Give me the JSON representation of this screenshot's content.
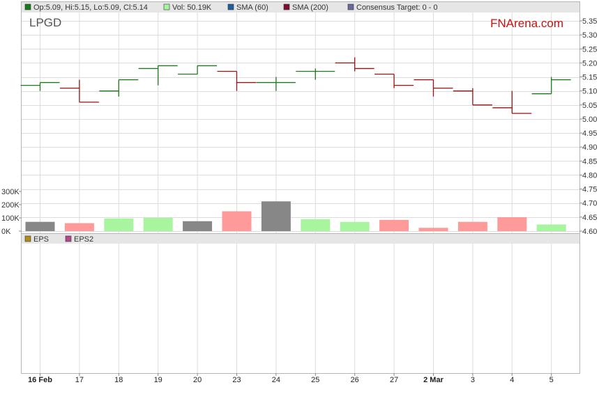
{
  "ticker": "LPGD",
  "brand": "FNArena.com",
  "legend": [
    {
      "text": "Op:5.09, Hi:5.15, Lo:5.09, Cl:5.14",
      "color": "#1a7a1a"
    },
    {
      "text": "Vol: 50.19K",
      "color": "#a8f5a0"
    },
    {
      "text": "SMA (60)",
      "color": "#1f5f9f"
    },
    {
      "text": "SMA (200)",
      "color": "#7a1030"
    },
    {
      "text": "Consensus Target: 0 - 0",
      "color": "#6a6a9a"
    }
  ],
  "eps_legend": [
    {
      "text": "EPS",
      "color": "#b08a1a"
    },
    {
      "text": "EPS2",
      "color": "#b04a8a"
    }
  ],
  "colors": {
    "up": "#1a7a1a",
    "down": "#991111",
    "vol_up": "#a8f5a0",
    "vol_down": "#ff9a9a",
    "vol_neutral": "#878787",
    "grid": "#dcdcdc",
    "header_bg": "#e6e6e6"
  },
  "chart_data": {
    "type": "ohlc",
    "x": [
      "16 Feb",
      "17",
      "18",
      "19",
      "20",
      "23",
      "24",
      "25",
      "26",
      "27",
      "2 Mar",
      "3",
      "4",
      "5"
    ],
    "bold_x": [
      "16 Feb",
      "2 Mar"
    ],
    "ohlc": [
      {
        "open": 5.12,
        "high": 5.13,
        "low": 5.1,
        "close": 5.13
      },
      {
        "open": 5.11,
        "high": 5.14,
        "low": 5.06,
        "close": 5.06
      },
      {
        "open": 5.1,
        "high": 5.14,
        "low": 5.08,
        "close": 5.14
      },
      {
        "open": 5.18,
        "high": 5.19,
        "low": 5.12,
        "close": 5.19
      },
      {
        "open": 5.16,
        "high": 5.19,
        "low": 5.16,
        "close": 5.19
      },
      {
        "open": 5.17,
        "high": 5.17,
        "low": 5.1,
        "close": 5.13
      },
      {
        "open": 5.13,
        "high": 5.15,
        "low": 5.1,
        "close": 5.13
      },
      {
        "open": 5.17,
        "high": 5.18,
        "low": 5.14,
        "close": 5.17
      },
      {
        "open": 5.2,
        "high": 5.22,
        "low": 5.17,
        "close": 5.18
      },
      {
        "open": 5.16,
        "high": 5.16,
        "low": 5.11,
        "close": 5.12
      },
      {
        "open": 5.14,
        "high": 5.14,
        "low": 5.08,
        "close": 5.11
      },
      {
        "open": 5.1,
        "high": 5.11,
        "low": 5.05,
        "close": 5.05
      },
      {
        "open": 5.04,
        "high": 5.1,
        "low": 5.02,
        "close": 5.02
      },
      {
        "open": 5.09,
        "high": 5.15,
        "low": 5.09,
        "close": 5.14
      }
    ],
    "volume": [
      70000,
      60000,
      95000,
      100000,
      75000,
      150000,
      225000,
      90000,
      70000,
      85000,
      25000,
      70000,
      105000,
      50190
    ],
    "volume_color": [
      "neutral",
      "down",
      "up",
      "up",
      "neutral",
      "down",
      "neutral",
      "up",
      "up",
      "down",
      "down",
      "down",
      "down",
      "up"
    ],
    "price_ylim": [
      4.6,
      5.35
    ],
    "price_ticks": [
      "5.35",
      "5.30",
      "5.25",
      "5.20",
      "5.15",
      "5.10",
      "5.05",
      "5.00",
      "4.95",
      "4.90",
      "4.85",
      "4.80",
      "4.75",
      "4.70",
      "4.65",
      "4.60"
    ],
    "volume_ylim": [
      0,
      300000
    ],
    "volume_ticks": [
      {
        "label": "300K",
        "value": 300000
      },
      {
        "label": "200K",
        "value": 200000
      },
      {
        "label": "100K",
        "value": 100000
      },
      {
        "label": "0K",
        "value": 0
      }
    ],
    "grid": true
  }
}
